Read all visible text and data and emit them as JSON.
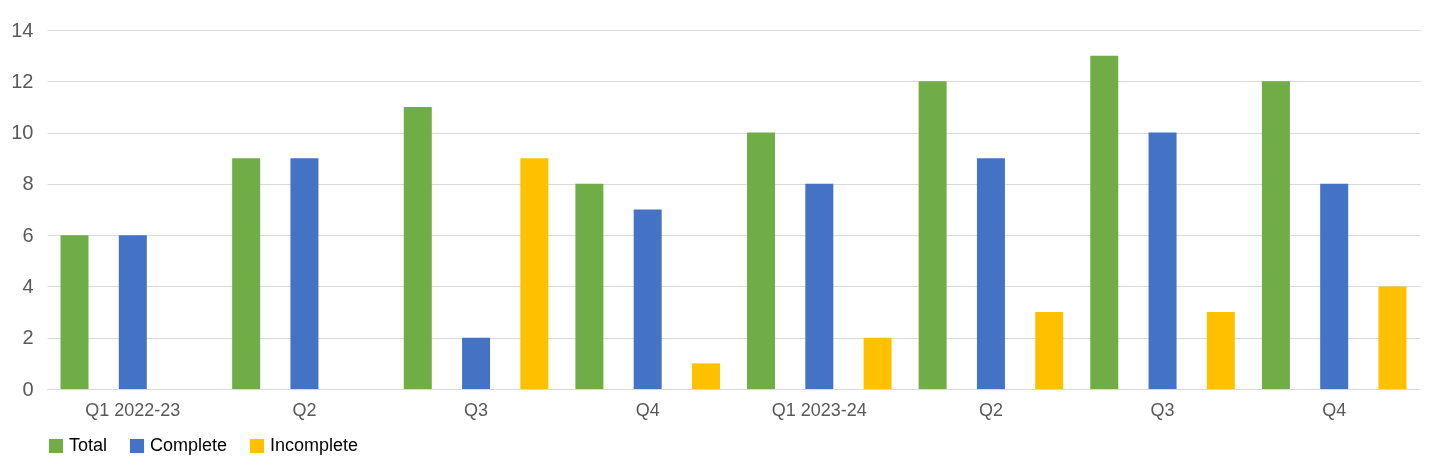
{
  "chart_data": {
    "type": "bar",
    "categories": [
      "Q1 2022-23",
      "Q2",
      "Q3",
      "Q4",
      "Q1 2023-24",
      "Q2",
      "Q3",
      "Q4"
    ],
    "series": [
      {
        "name": "Total",
        "color": "#70ad47",
        "values": [
          6,
          9,
          11,
          8,
          10,
          12,
          13,
          12
        ]
      },
      {
        "name": "Complete",
        "color": "#4472c4",
        "values": [
          6,
          9,
          2,
          7,
          8,
          9,
          10,
          8
        ]
      },
      {
        "name": "Incomplete",
        "color": "#ffc000",
        "values": [
          null,
          null,
          9,
          1,
          2,
          3,
          3,
          4
        ]
      }
    ],
    "ylim": [
      0,
      14
    ],
    "yticks": [
      0,
      2,
      4,
      6,
      8,
      10,
      12,
      14
    ],
    "grid": "y",
    "legend": "bottom"
  }
}
